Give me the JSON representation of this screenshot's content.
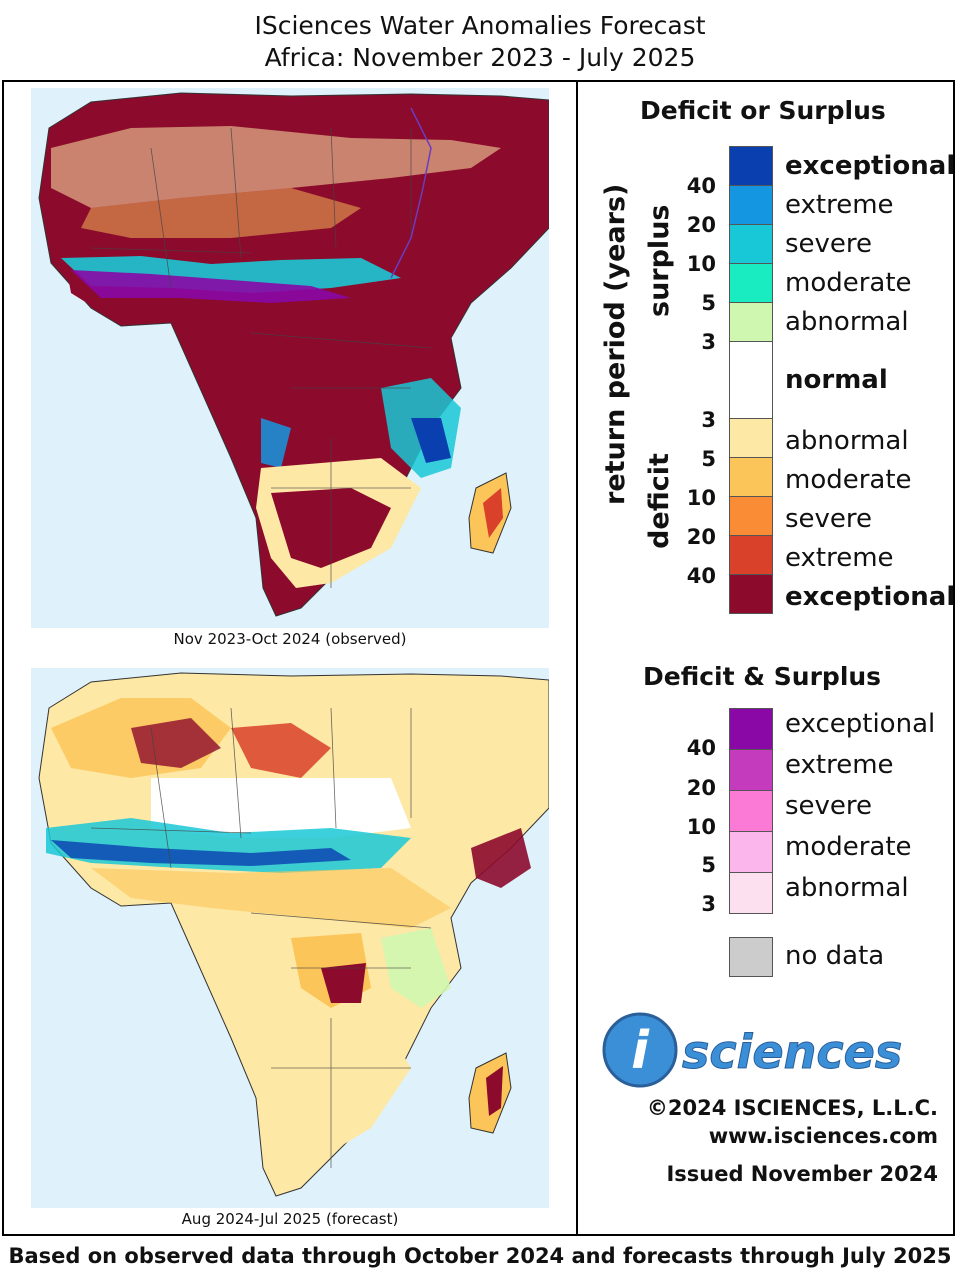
{
  "title_line1": "ISciences Water Anomalies Forecast",
  "title_line2": "Africa: November 2023 - July 2025",
  "panels": [
    {
      "caption": "Nov 2023-Oct 2024 (observed)"
    },
    {
      "caption": "Aug 2024-Jul 2025 (forecast)"
    }
  ],
  "legend_ds": {
    "title": "Deficit or Surplus",
    "axis_label": "return period (years)",
    "surplus_label": "surplus",
    "deficit_label": "deficit",
    "categories": [
      {
        "label": "exceptional",
        "color": "#0a3fb0",
        "bold": true
      },
      {
        "label": "extreme",
        "color": "#1497e0",
        "bold": false
      },
      {
        "label": "severe",
        "color": "#19c8d6",
        "bold": false
      },
      {
        "label": "moderate",
        "color": "#18ecc0",
        "bold": false
      },
      {
        "label": "abnormal",
        "color": "#d0f7b0",
        "bold": false
      },
      {
        "label": "normal",
        "color": "#ffffff",
        "bold": true
      },
      {
        "label": "abnormal",
        "color": "#fde8a5",
        "bold": false
      },
      {
        "label": "moderate",
        "color": "#fcc559",
        "bold": false
      },
      {
        "label": "severe",
        "color": "#fa8c35",
        "bold": false
      },
      {
        "label": "extreme",
        "color": "#d9412a",
        "bold": false
      },
      {
        "label": "exceptional",
        "color": "#8c0a2c",
        "bold": true
      }
    ],
    "surplus_ticks": [
      "40",
      "20",
      "10",
      "5",
      "3"
    ],
    "deficit_ticks": [
      "3",
      "5",
      "10",
      "20",
      "40"
    ]
  },
  "legend_both": {
    "title": "Deficit & Surplus",
    "categories": [
      {
        "label": "exceptional",
        "color": "#8a08a5"
      },
      {
        "label": "extreme",
        "color": "#c43bbd"
      },
      {
        "label": "severe",
        "color": "#fa7ad6"
      },
      {
        "label": "moderate",
        "color": "#fbb6ec"
      },
      {
        "label": "abnormal",
        "color": "#fde0f0"
      }
    ],
    "ticks": [
      "40",
      "20",
      "10",
      "5",
      "3"
    ]
  },
  "no_data": {
    "label": "no data",
    "color": "#cccccc"
  },
  "logo": {
    "letter": "i",
    "text": "sciences"
  },
  "copyright": "©2024 ISCIENCES, L.L.C.",
  "website": "www.isciences.com",
  "issued": "Issued November 2024",
  "footer": "Based on observed data through October 2024 and forecasts through July 2025"
}
